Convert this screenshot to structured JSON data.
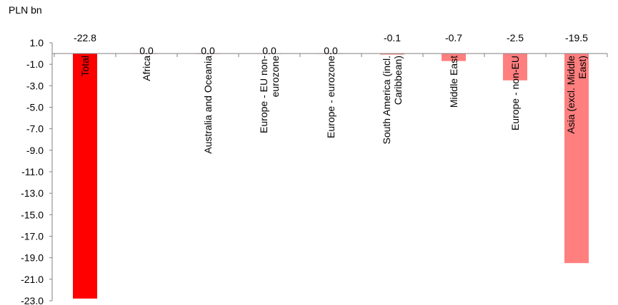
{
  "chart_data": {
    "type": "bar",
    "ylabel": "PLN bn",
    "ylim": [
      -23.0,
      1.0
    ],
    "yticks": [
      1.0,
      -1.0,
      -3.0,
      -5.0,
      -7.0,
      -9.0,
      -11.0,
      -13.0,
      -15.0,
      -17.0,
      -19.0,
      -21.0,
      -23.0
    ],
    "categories": [
      "Total",
      "Africa",
      "Australia and Oceania",
      "Europe - EU non-eurozone",
      "Europe - eurozone",
      "South America (incl. Caribbean)",
      "Middle East",
      "Europe - non-EU",
      "Asia (excl. Middle East)"
    ],
    "category_lines": [
      [
        "Total"
      ],
      [
        "Africa"
      ],
      [
        "Australia and Oceania"
      ],
      [
        "Europe - EU non-",
        "eurozone"
      ],
      [
        "Europe - eurozone"
      ],
      [
        "South America (incl.",
        "Caribbean)"
      ],
      [
        "Middle East"
      ],
      [
        "Europe - non-EU"
      ],
      [
        "Asia (excl. Middle",
        "East)"
      ]
    ],
    "values": [
      -22.8,
      0.0,
      0.0,
      0.0,
      0.0,
      -0.1,
      -0.7,
      -2.5,
      -19.5
    ],
    "value_labels": [
      "-22.8",
      "0.0",
      "0.0",
      "0.0",
      "0.0",
      "-0.1",
      "-0.7",
      "-2.5",
      "-19.5"
    ],
    "colors": [
      "#ff0000",
      "#ff7f7f",
      "#ff7f7f",
      "#ff7f7f",
      "#ff7f7f",
      "#ff7f7f",
      "#ff7f7f",
      "#ff7f7f",
      "#ff7f7f"
    ]
  }
}
